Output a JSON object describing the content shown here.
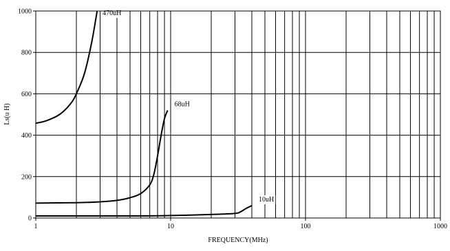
{
  "chart_data": {
    "type": "line",
    "title": "",
    "xlabel": "FREQUENCY(MHz)",
    "ylabel": "Ls(u H)",
    "x_scale": "log",
    "xlim": [
      1,
      1000
    ],
    "ylim": [
      0,
      1000
    ],
    "x_ticks": [
      1,
      10,
      100,
      1000
    ],
    "x_tick_labels": [
      "1",
      "10",
      "100",
      "1000"
    ],
    "y_ticks": [
      0,
      200,
      400,
      600,
      800,
      1000
    ],
    "y_tick_labels": [
      "0",
      "200",
      "400",
      "600",
      "800",
      "1000"
    ],
    "grid": true,
    "legend": "none",
    "line_color": "#000000",
    "series": [
      {
        "name": "470uH",
        "x": [
          1.0,
          1.2,
          1.5,
          1.8,
          2.0,
          2.3,
          2.6,
          2.85
        ],
        "y": [
          458,
          470,
          500,
          550,
          600,
          700,
          850,
          1000
        ]
      },
      {
        "name": "68uH",
        "x": [
          1.0,
          2.0,
          3.0,
          4.0,
          5.0,
          6.0,
          7.0,
          7.5,
          8.0,
          8.5,
          9.0,
          9.5
        ],
        "y": [
          72,
          74,
          78,
          85,
          98,
          118,
          160,
          210,
          300,
          400,
          480,
          520
        ]
      },
      {
        "name": "10uH",
        "x": [
          1.0,
          5.0,
          10.0,
          20.0,
          30.0,
          33.0,
          36.0,
          40.0
        ],
        "y": [
          10,
          10,
          12,
          17,
          22,
          30,
          45,
          60
        ]
      }
    ]
  }
}
